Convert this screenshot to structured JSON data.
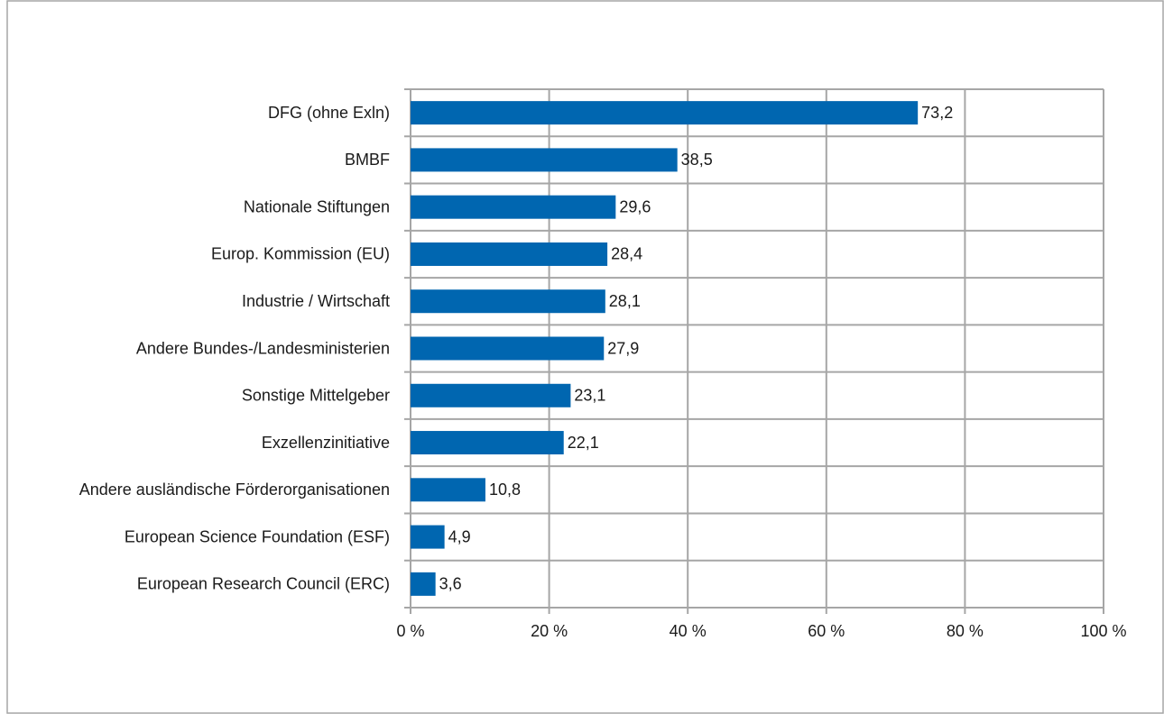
{
  "chart_data": {
    "type": "bar",
    "orientation": "horizontal",
    "categories": [
      "DFG (ohne Exln)",
      "BMBF",
      "Nationale Stiftungen",
      "Europ. Kommission (EU)",
      "Industrie / Wirtschaft",
      "Andere Bundes-/Landesministerien",
      "Sonstige Mittelgeber",
      "Exzellenzinitiative",
      "Andere ausländische Förderorganisationen",
      "European Science Foundation (ESF)",
      "European Research Council (ERC)"
    ],
    "values": [
      73.2,
      38.5,
      29.6,
      28.4,
      28.1,
      27.9,
      23.1,
      22.1,
      10.8,
      4.9,
      3.6
    ],
    "value_labels": [
      "73,2",
      "38,5",
      "29,6",
      "28,4",
      "28,1",
      "27,9",
      "23,1",
      "22,1",
      "10,8",
      "4,9",
      "3,6"
    ],
    "color": "#0066b0",
    "xlim": [
      0,
      100
    ],
    "xticks": [
      {
        "value": 0,
        "label": "0 %"
      },
      {
        "value": 20,
        "label": "20 %"
      },
      {
        "value": 40,
        "label": "40 %"
      },
      {
        "value": 60,
        "label": "60 %"
      },
      {
        "value": 80,
        "label": "80 %"
      },
      {
        "value": 100,
        "label": "100 %"
      }
    ],
    "grid": true
  }
}
